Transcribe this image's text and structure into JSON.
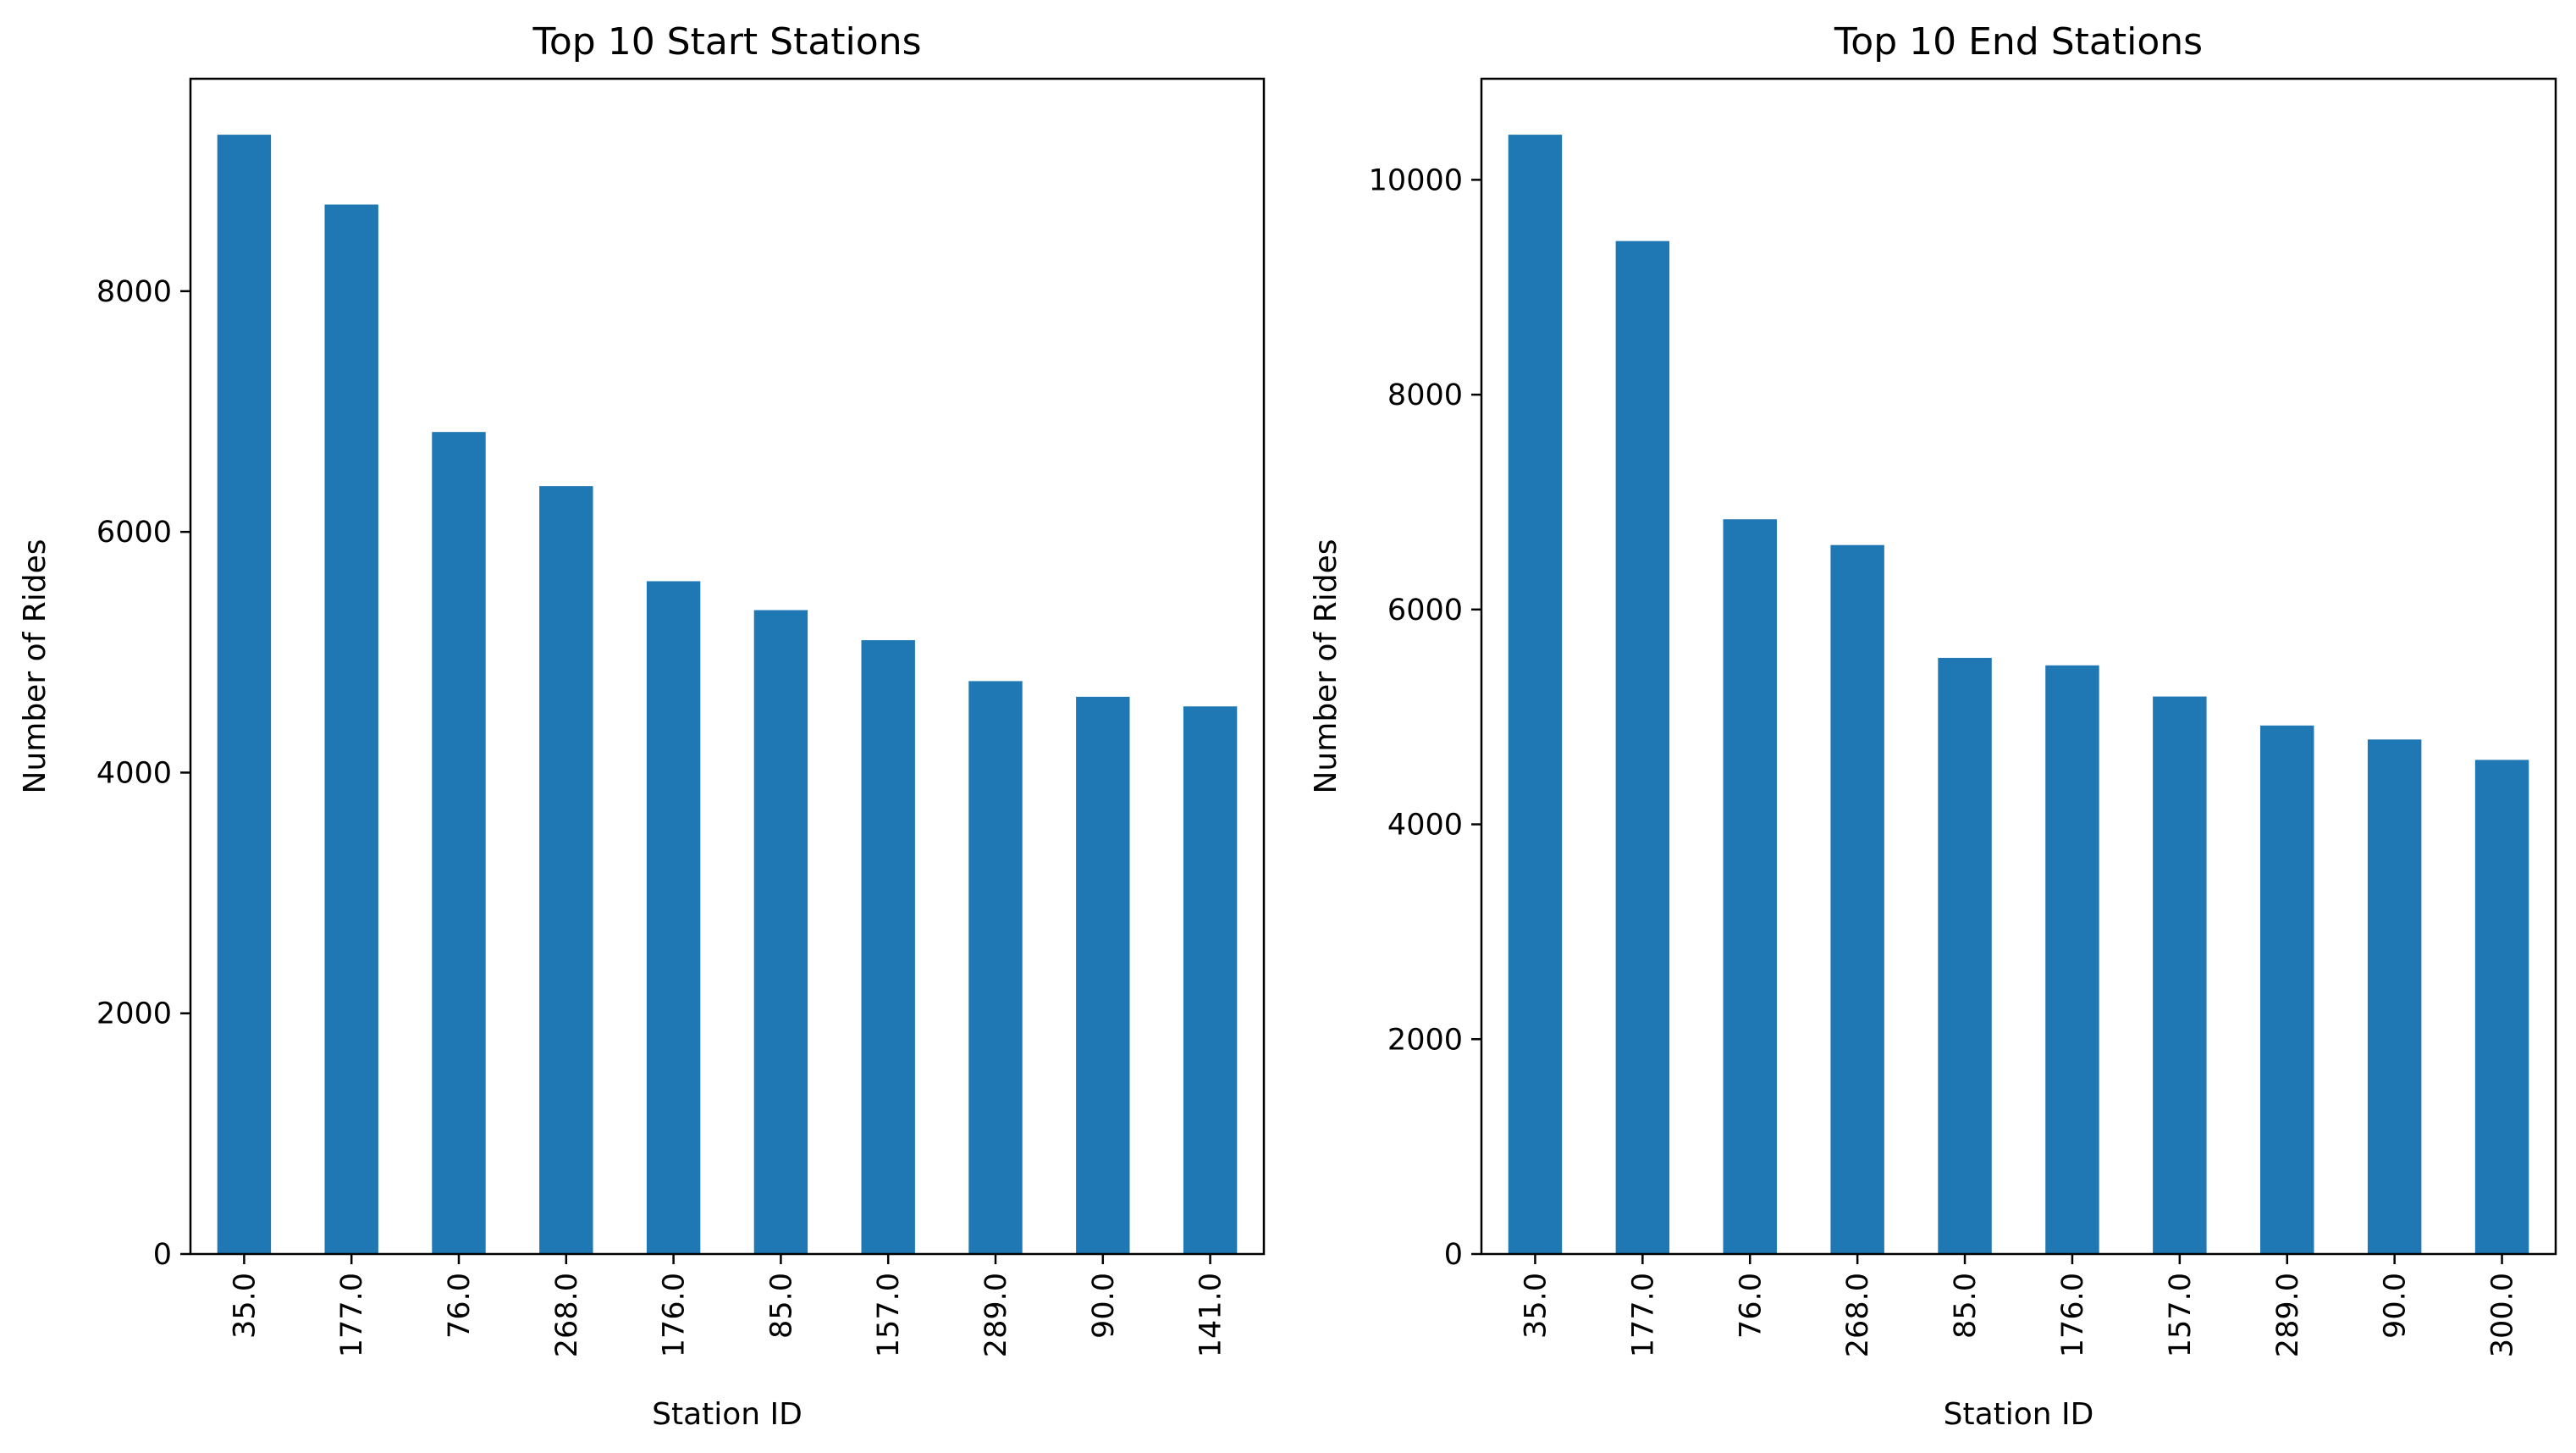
{
  "chart_data": [
    {
      "type": "bar",
      "title": "Top 10 Start Stations",
      "xlabel": "Station ID",
      "ylabel": "Number of Rides",
      "categories": [
        "35.0",
        "177.0",
        "76.0",
        "268.0",
        "176.0",
        "85.0",
        "157.0",
        "289.0",
        "90.0",
        "141.0"
      ],
      "values": [
        9300,
        8720,
        6830,
        6380,
        5590,
        5350,
        5100,
        4760,
        4630,
        4550
      ],
      "ylim": [
        0,
        9765
      ],
      "yticks": [
        0,
        2000,
        4000,
        6000,
        8000
      ],
      "ytick_labels": [
        "0",
        "2000",
        "4000",
        "6000",
        "8000"
      ],
      "bar_color": "#1f77b4",
      "grid": false,
      "legend": "none"
    },
    {
      "type": "bar",
      "title": "Top 10 End Stations",
      "xlabel": "Station ID",
      "ylabel": "Number of Rides",
      "categories": [
        "35.0",
        "177.0",
        "76.0",
        "268.0",
        "85.0",
        "176.0",
        "157.0",
        "289.0",
        "90.0",
        "300.0"
      ],
      "values": [
        10420,
        9430,
        6840,
        6600,
        5550,
        5480,
        5190,
        4920,
        4790,
        4600
      ],
      "ylim": [
        0,
        10941
      ],
      "yticks": [
        0,
        2000,
        4000,
        6000,
        8000,
        10000
      ],
      "ytick_labels": [
        "0",
        "2000",
        "4000",
        "6000",
        "8000",
        "10000"
      ],
      "bar_color": "#1f77b4",
      "grid": false,
      "legend": "none"
    }
  ]
}
